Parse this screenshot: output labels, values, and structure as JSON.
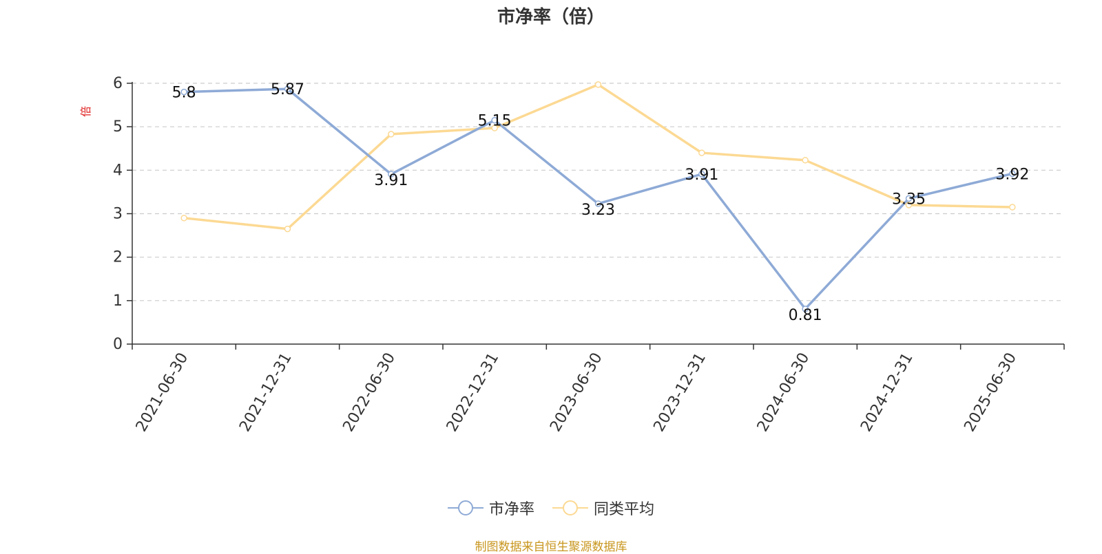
{
  "chart_data": {
    "type": "line",
    "title": "市净率（倍）",
    "ylabel": "倍",
    "categories": [
      "2021-06-30",
      "2021-12-31",
      "2022-06-30",
      "2022-12-31",
      "2023-06-30",
      "2023-12-31",
      "2024-06-30",
      "2024-12-31",
      "2025-06-30"
    ],
    "ylim": [
      0,
      6
    ],
    "yticks": [
      0,
      1,
      2,
      3,
      4,
      5,
      6
    ],
    "grid": true,
    "legend_position": "bottom",
    "series": [
      {
        "name": "市净率",
        "color": "#8eaad6",
        "values": [
          5.8,
          5.87,
          3.91,
          5.15,
          3.23,
          3.91,
          0.81,
          3.35,
          3.92
        ],
        "labels": [
          "5.8",
          "5.87",
          "3.91",
          "5.15",
          "3.23",
          "3.91",
          "0.81",
          "3.35",
          "3.92"
        ]
      },
      {
        "name": "同类平均",
        "color": "#fcd993",
        "values": [
          2.9,
          2.65,
          4.83,
          4.97,
          5.97,
          4.4,
          4.23,
          3.2,
          3.15
        ]
      }
    ],
    "source": "制图数据来自恒生聚源数据库"
  },
  "colors": {
    "axis": "#333333",
    "grid": "#cccccc",
    "ylabel": "#e02020",
    "source": "#c8961e"
  }
}
